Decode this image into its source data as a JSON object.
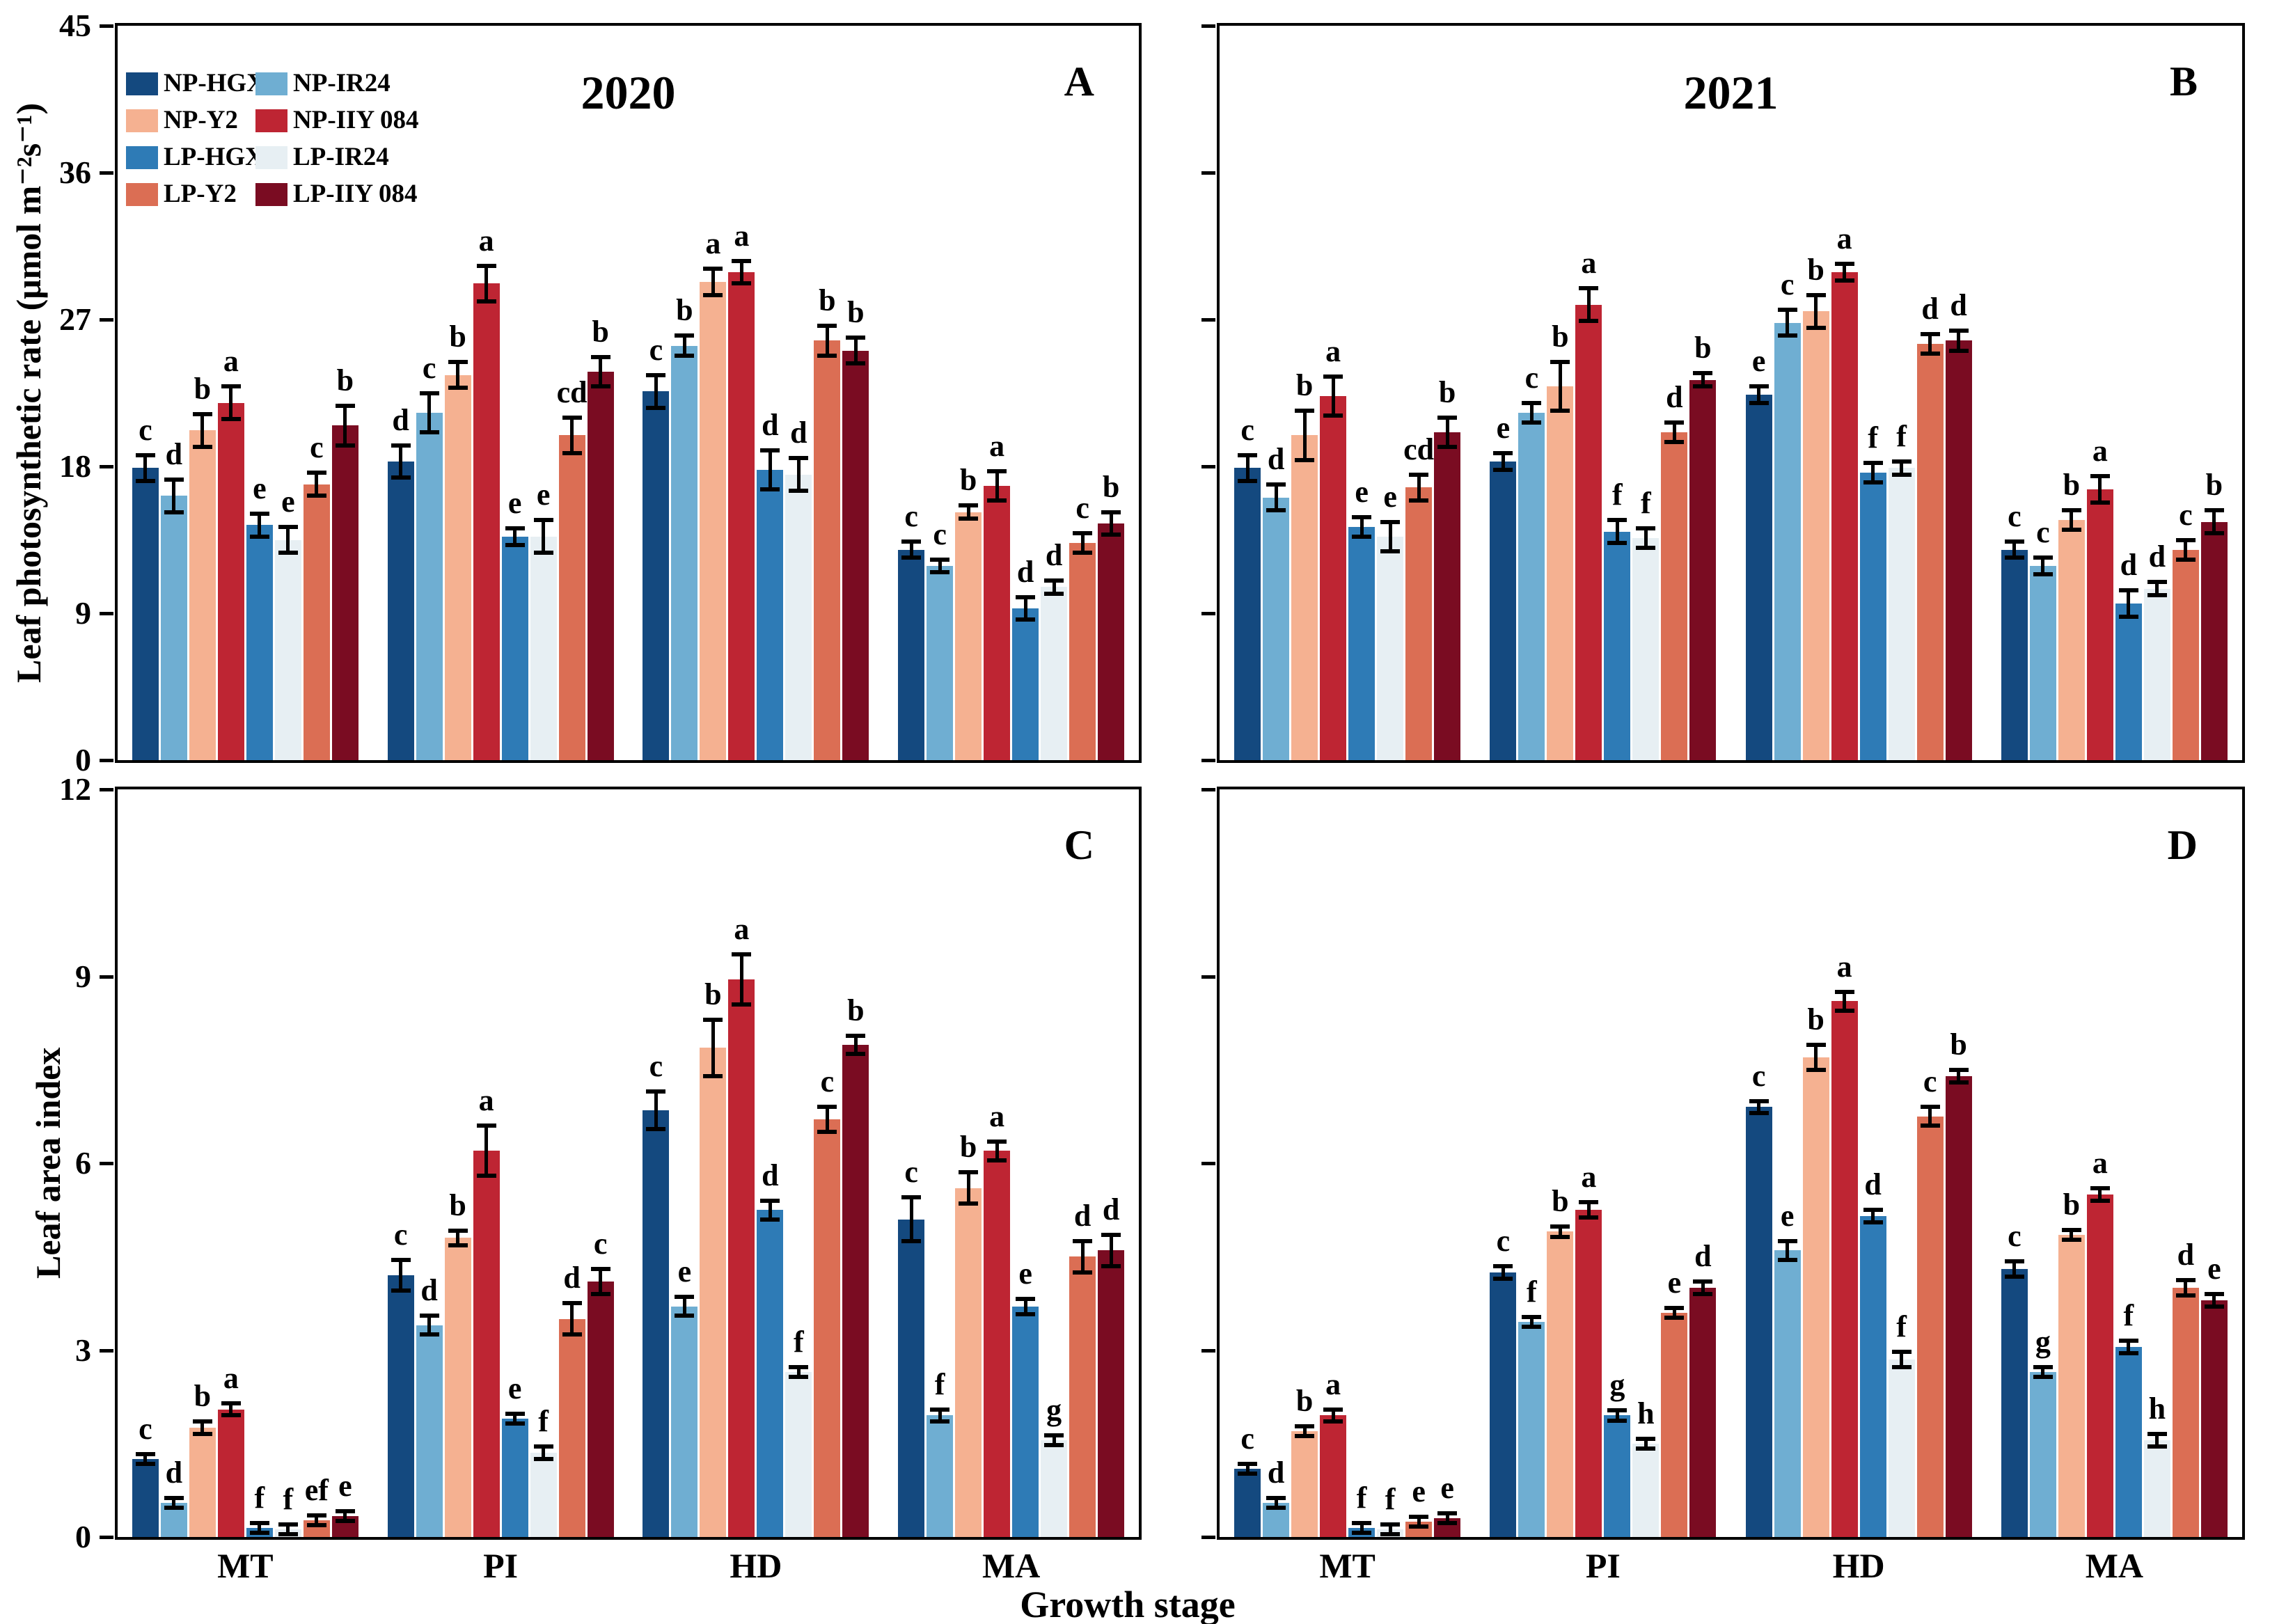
{
  "figure": {
    "x_axis_title": "Growth stage",
    "background_color": "#ffffff",
    "axis_color": "#000000"
  },
  "chart_data": [
    {
      "id": "A",
      "type": "bar",
      "title": "2020",
      "panel_letter": "A",
      "ylabel": "Leaf photosynthetic rate (μmol m⁻²s⁻¹)",
      "xlabel": "",
      "ylim": [
        0,
        45
      ],
      "yticks": [
        0,
        9,
        18,
        27,
        36,
        45
      ],
      "grid": false,
      "legend_position": "top-left-inside",
      "categories": [
        "MT",
        "PI",
        "HD",
        "MA"
      ],
      "series": [
        {
          "name": "NP-HGX",
          "color": "#14497F",
          "values": [
            17.9,
            18.3,
            22.6,
            12.9
          ],
          "errors": [
            0.8,
            1.0,
            1.0,
            0.5
          ],
          "letters": [
            "c",
            "d",
            "c",
            "c"
          ]
        },
        {
          "name": "NP-IR24",
          "color": "#6FAED2",
          "values": [
            16.2,
            21.3,
            25.4,
            11.9
          ],
          "errors": [
            1.0,
            1.2,
            0.6,
            0.4
          ],
          "letters": [
            "d",
            "c",
            "b",
            "c"
          ]
        },
        {
          "name": "NP-Y2",
          "color": "#F5B191",
          "values": [
            20.2,
            23.6,
            29.3,
            15.2
          ],
          "errors": [
            1.0,
            0.8,
            0.8,
            0.4
          ],
          "letters": [
            "b",
            "b",
            "a",
            "b"
          ]
        },
        {
          "name": "NP-IIY 084",
          "color": "#BE2533",
          "values": [
            21.9,
            29.2,
            29.9,
            16.8
          ],
          "errors": [
            1.0,
            1.1,
            0.7,
            0.9
          ],
          "letters": [
            "a",
            "a",
            "a",
            "a"
          ]
        },
        {
          "name": "LP-HGX",
          "color": "#2E7BB6",
          "values": [
            14.4,
            13.7,
            17.8,
            9.3
          ],
          "errors": [
            0.7,
            0.5,
            1.2,
            0.7
          ],
          "letters": [
            "e",
            "e",
            "d",
            "d"
          ]
        },
        {
          "name": "LP-IR24",
          "color": "#E7EFF3",
          "values": [
            13.5,
            13.7,
            17.5,
            10.6
          ],
          "errors": [
            0.8,
            1.0,
            1.0,
            0.4
          ],
          "letters": [
            "e",
            "e",
            "d",
            "d"
          ]
        },
        {
          "name": "LP-Y2",
          "color": "#DB6E54",
          "values": [
            16.9,
            19.9,
            25.7,
            13.3
          ],
          "errors": [
            0.7,
            1.1,
            0.9,
            0.6
          ],
          "letters": [
            "c",
            "cd",
            "b",
            "c"
          ]
        },
        {
          "name": "LP-IIY 084",
          "color": "#7A0C22",
          "values": [
            20.5,
            23.8,
            25.1,
            14.5
          ],
          "errors": [
            1.2,
            0.9,
            0.8,
            0.7
          ],
          "letters": [
            "b",
            "b",
            "b",
            "b"
          ]
        }
      ]
    },
    {
      "id": "B",
      "type": "bar",
      "title": "2021",
      "panel_letter": "B",
      "ylabel": "",
      "xlabel": "",
      "ylim": [
        0,
        45
      ],
      "yticks": [
        0,
        9,
        18,
        27,
        36,
        45
      ],
      "grid": false,
      "legend_position": "none",
      "categories": [
        "MT",
        "PI",
        "HD",
        "MA"
      ],
      "series": [
        {
          "name": "NP-HGX",
          "color": "#14497F",
          "values": [
            17.9,
            18.3,
            22.4,
            12.9
          ],
          "errors": [
            0.8,
            0.5,
            0.5,
            0.5
          ],
          "letters": [
            "c",
            "e",
            "e",
            "c"
          ]
        },
        {
          "name": "NP-IR24",
          "color": "#6FAED2",
          "values": [
            16.1,
            21.3,
            26.8,
            11.9
          ],
          "errors": [
            0.8,
            0.6,
            0.8,
            0.5
          ],
          "letters": [
            "d",
            "c",
            "c",
            "c"
          ]
        },
        {
          "name": "NP-Y2",
          "color": "#F5B191",
          "values": [
            19.9,
            22.9,
            27.5,
            14.7
          ],
          "errors": [
            1.5,
            1.5,
            1.0,
            0.6
          ],
          "letters": [
            "b",
            "b",
            "b",
            "b"
          ]
        },
        {
          "name": "NP-IIY 084",
          "color": "#BE2533",
          "values": [
            22.3,
            27.9,
            29.9,
            16.6
          ],
          "errors": [
            1.2,
            1.0,
            0.5,
            0.8
          ],
          "letters": [
            "a",
            "a",
            "a",
            "a"
          ]
        },
        {
          "name": "LP-HGX",
          "color": "#2E7BB6",
          "values": [
            14.3,
            14.0,
            17.6,
            9.6
          ],
          "errors": [
            0.6,
            0.7,
            0.6,
            0.8
          ],
          "letters": [
            "e",
            "f",
            "f",
            "d"
          ]
        },
        {
          "name": "LP-IR24",
          "color": "#E7EFF3",
          "values": [
            13.7,
            13.6,
            17.9,
            10.5
          ],
          "errors": [
            0.9,
            0.6,
            0.4,
            0.4
          ],
          "letters": [
            "e",
            "f",
            "f",
            "d"
          ]
        },
        {
          "name": "LP-Y2",
          "color": "#DB6E54",
          "values": [
            16.7,
            20.1,
            25.5,
            12.9
          ],
          "errors": [
            0.8,
            0.6,
            0.6,
            0.6
          ],
          "letters": [
            "cd",
            "d",
            "d",
            "c"
          ]
        },
        {
          "name": "LP-IIY 084",
          "color": "#7A0C22",
          "values": [
            20.1,
            23.3,
            25.7,
            14.6
          ],
          "errors": [
            0.9,
            0.4,
            0.6,
            0.7
          ],
          "letters": [
            "b",
            "b",
            "d",
            "b"
          ]
        }
      ]
    },
    {
      "id": "C",
      "type": "bar",
      "title": "",
      "panel_letter": "C",
      "ylabel": "Leaf area index",
      "xlabel": "",
      "ylim": [
        0,
        12
      ],
      "yticks": [
        0,
        3,
        6,
        9,
        12
      ],
      "grid": false,
      "legend_position": "none",
      "categories": [
        "MT",
        "PI",
        "HD",
        "MA"
      ],
      "series": [
        {
          "name": "NP-HGX",
          "color": "#14497F",
          "values": [
            1.25,
            4.2,
            6.85,
            5.1
          ],
          "errors": [
            0.08,
            0.25,
            0.3,
            0.35
          ],
          "letters": [
            "c",
            "c",
            "c",
            "c"
          ]
        },
        {
          "name": "NP-IR24",
          "color": "#6FAED2",
          "values": [
            0.55,
            3.4,
            3.7,
            1.95
          ],
          "errors": [
            0.06,
            0.15,
            0.15,
            0.1
          ],
          "letters": [
            "d",
            "d",
            "e",
            "f"
          ]
        },
        {
          "name": "NP-Y2",
          "color": "#F5B191",
          "values": [
            1.75,
            4.8,
            7.85,
            5.6
          ],
          "errors": [
            0.1,
            0.12,
            0.45,
            0.25
          ],
          "letters": [
            "b",
            "b",
            "b",
            "b"
          ]
        },
        {
          "name": "NP-IIY 084",
          "color": "#BE2533",
          "values": [
            2.05,
            6.2,
            8.95,
            6.2
          ],
          "errors": [
            0.1,
            0.4,
            0.4,
            0.15
          ],
          "letters": [
            "a",
            "a",
            "a",
            "a"
          ]
        },
        {
          "name": "LP-HGX",
          "color": "#2E7BB6",
          "values": [
            0.15,
            1.9,
            5.25,
            3.7
          ],
          "errors": [
            0.03,
            0.08,
            0.15,
            0.12
          ],
          "letters": [
            "f",
            "e",
            "d",
            "e"
          ]
        },
        {
          "name": "LP-IR24",
          "color": "#E7EFF3",
          "values": [
            0.12,
            1.35,
            2.65,
            1.55
          ],
          "errors": [
            0.03,
            0.1,
            0.08,
            0.08
          ],
          "letters": [
            "f",
            "f",
            "f",
            "g"
          ]
        },
        {
          "name": "LP-Y2",
          "color": "#DB6E54",
          "values": [
            0.27,
            3.5,
            6.7,
            4.5
          ],
          "errors": [
            0.04,
            0.25,
            0.2,
            0.25
          ],
          "letters": [
            "ef",
            "d",
            "c",
            "d"
          ]
        },
        {
          "name": "LP-IIY 084",
          "color": "#7A0C22",
          "values": [
            0.33,
            4.1,
            7.9,
            4.6
          ],
          "errors": [
            0.04,
            0.2,
            0.15,
            0.25
          ],
          "letters": [
            "e",
            "c",
            "b",
            "d"
          ]
        }
      ]
    },
    {
      "id": "D",
      "type": "bar",
      "title": "",
      "panel_letter": "D",
      "ylabel": "",
      "xlabel": "Growth stage",
      "ylim": [
        0,
        12
      ],
      "yticks": [
        0,
        3,
        6,
        9,
        12
      ],
      "grid": false,
      "legend_position": "none",
      "categories": [
        "MT",
        "PI",
        "HD",
        "MA"
      ],
      "series": [
        {
          "name": "NP-HGX",
          "color": "#14497F",
          "values": [
            1.1,
            4.25,
            6.9,
            4.3
          ],
          "errors": [
            0.06,
            0.1,
            0.1,
            0.12
          ],
          "letters": [
            "c",
            "c",
            "c",
            "c"
          ]
        },
        {
          "name": "NP-IR24",
          "color": "#6FAED2",
          "values": [
            0.55,
            3.45,
            4.6,
            2.65
          ],
          "errors": [
            0.05,
            0.08,
            0.15,
            0.08
          ],
          "letters": [
            "d",
            "f",
            "e",
            "g"
          ]
        },
        {
          "name": "NP-Y2",
          "color": "#F5B191",
          "values": [
            1.7,
            4.9,
            7.7,
            4.85
          ],
          "errors": [
            0.08,
            0.08,
            0.2,
            0.08
          ],
          "letters": [
            "b",
            "b",
            "b",
            "b"
          ]
        },
        {
          "name": "NP-IIY 084",
          "color": "#BE2533",
          "values": [
            1.95,
            5.25,
            8.6,
            5.5
          ],
          "errors": [
            0.1,
            0.12,
            0.15,
            0.1
          ],
          "letters": [
            "a",
            "a",
            "a",
            "a"
          ]
        },
        {
          "name": "LP-HGX",
          "color": "#2E7BB6",
          "values": [
            0.15,
            1.95,
            5.15,
            3.05
          ],
          "errors": [
            0.02,
            0.08,
            0.1,
            0.1
          ],
          "letters": [
            "f",
            "g",
            "d",
            "f"
          ]
        },
        {
          "name": "LP-IR24",
          "color": "#E7EFF3",
          "values": [
            0.12,
            1.5,
            2.85,
            1.55
          ],
          "errors": [
            0.02,
            0.08,
            0.12,
            0.1
          ],
          "letters": [
            "f",
            "h",
            "f",
            "h"
          ]
        },
        {
          "name": "LP-Y2",
          "color": "#DB6E54",
          "values": [
            0.25,
            3.6,
            6.75,
            4.0
          ],
          "errors": [
            0.03,
            0.08,
            0.15,
            0.12
          ],
          "letters": [
            "e",
            "e",
            "c",
            "d"
          ]
        },
        {
          "name": "LP-IIY 084",
          "color": "#7A0C22",
          "values": [
            0.3,
            4.0,
            7.4,
            3.8
          ],
          "errors": [
            0.03,
            0.1,
            0.1,
            0.1
          ],
          "letters": [
            "e",
            "d",
            "b",
            "e"
          ]
        }
      ]
    }
  ]
}
